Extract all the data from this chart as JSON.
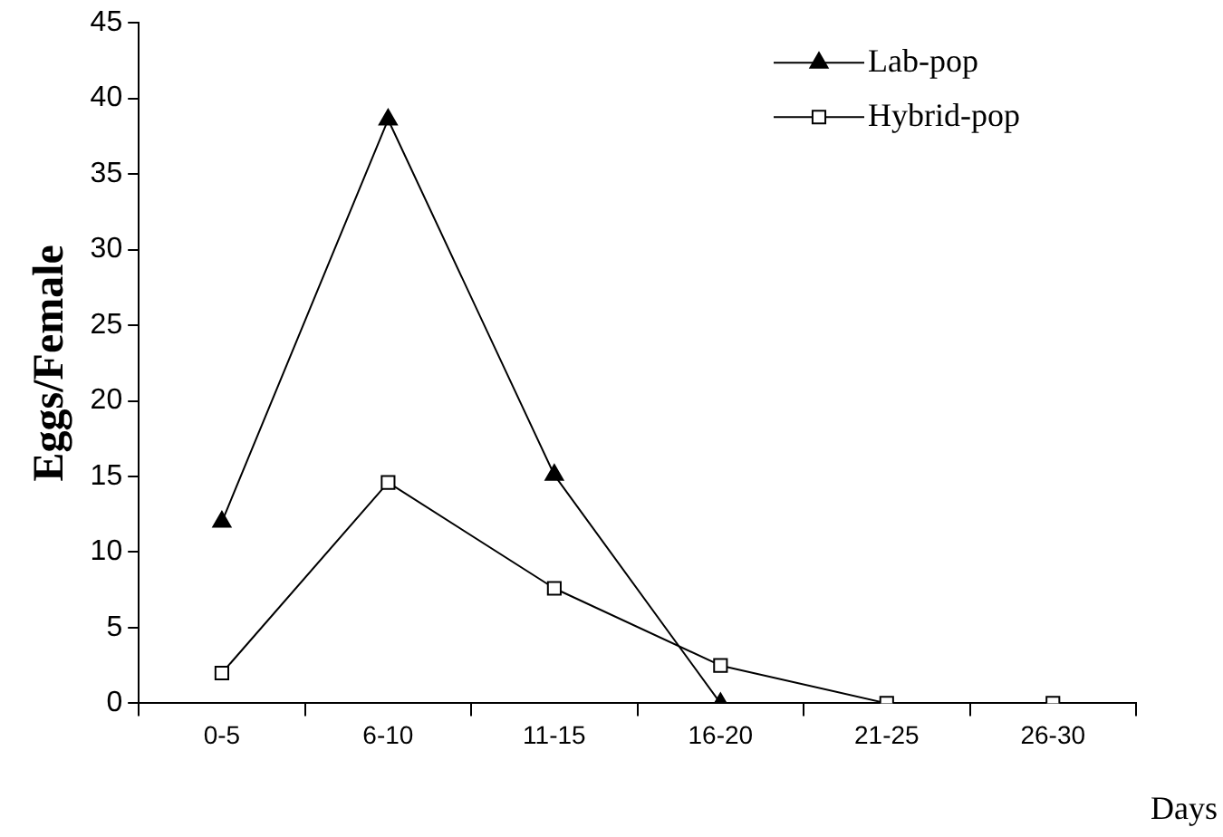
{
  "chart_data": {
    "type": "line",
    "xlabel": "Days",
    "ylabel": "Eggs/Female",
    "categories": [
      "0-5",
      "6-10",
      "11-15",
      "16-20",
      "21-25",
      "26-30"
    ],
    "series": [
      {
        "name": "Lab-pop",
        "color": "#000000",
        "marker": "triangle",
        "values": [
          12.0,
          38.6,
          15.1,
          0,
          null,
          null
        ]
      },
      {
        "name": "Hybrid-pop",
        "color": "#000000",
        "marker": "square",
        "values": [
          2.0,
          14.6,
          7.6,
          2.5,
          0,
          0
        ]
      }
    ],
    "ylim": [
      0,
      45
    ],
    "yticks": [
      0,
      5,
      10,
      15,
      20,
      25,
      30,
      35,
      40,
      45
    ],
    "grid": false,
    "legend": "top right",
    "line_style": "solid"
  }
}
